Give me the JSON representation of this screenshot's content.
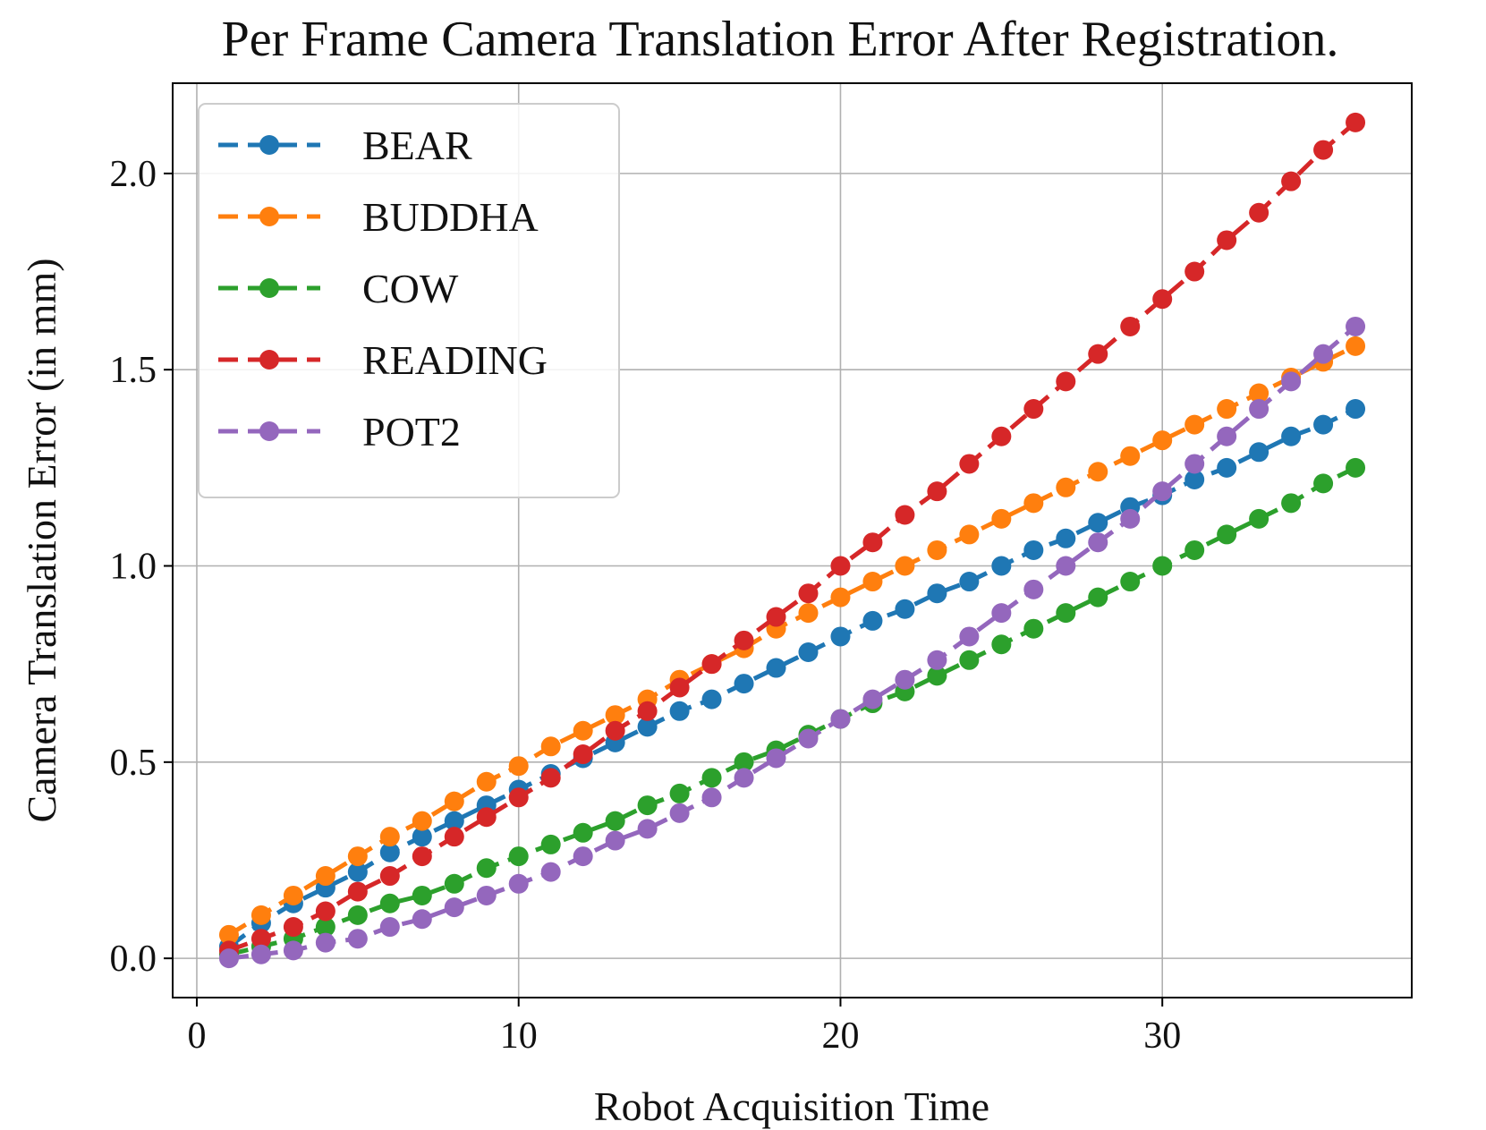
{
  "chart_data": {
    "type": "line",
    "title": "Per Frame Camera Translation Error After Registration.",
    "xlabel": "Robot Acquisition Time",
    "ylabel": "Camera Translation Error (in mm)",
    "xlim": [
      -0.75,
      37.75
    ],
    "ylim": [
      -0.1,
      2.23
    ],
    "xticks": [
      0,
      10,
      20,
      30
    ],
    "yticks": [
      0.0,
      0.5,
      1.0,
      1.5,
      2.0
    ],
    "xtick_labels": [
      "0",
      "10",
      "20",
      "30"
    ],
    "ytick_labels": [
      "0.0",
      "0.5",
      "1.0",
      "1.5",
      "2.0"
    ],
    "grid": true,
    "legend_position": "top-left",
    "x": [
      1,
      2,
      3,
      4,
      5,
      6,
      7,
      8,
      9,
      10,
      11,
      12,
      13,
      14,
      15,
      16,
      17,
      18,
      19,
      20,
      21,
      22,
      23,
      24,
      25,
      26,
      27,
      28,
      29,
      30,
      31,
      32,
      33,
      34,
      35,
      36
    ],
    "series": [
      {
        "name": "BEAR",
        "color": "#1f77b4",
        "values": [
          0.03,
          0.09,
          0.14,
          0.18,
          0.22,
          0.27,
          0.31,
          0.35,
          0.39,
          0.43,
          0.47,
          0.51,
          0.55,
          0.59,
          0.63,
          0.66,
          0.7,
          0.74,
          0.78,
          0.82,
          0.86,
          0.89,
          0.93,
          0.96,
          1.0,
          1.04,
          1.07,
          1.11,
          1.15,
          1.18,
          1.22,
          1.25,
          1.29,
          1.33,
          1.36,
          1.4
        ]
      },
      {
        "name": "BUDDHA",
        "color": "#ff7f0e",
        "values": [
          0.06,
          0.11,
          0.16,
          0.21,
          0.26,
          0.31,
          0.35,
          0.4,
          0.45,
          0.49,
          0.54,
          0.58,
          0.62,
          0.66,
          0.71,
          0.75,
          0.79,
          0.84,
          0.88,
          0.92,
          0.96,
          1.0,
          1.04,
          1.08,
          1.12,
          1.16,
          1.2,
          1.24,
          1.28,
          1.32,
          1.36,
          1.4,
          1.44,
          1.48,
          1.52,
          1.56
        ]
      },
      {
        "name": "COW",
        "color": "#2ca02c",
        "values": [
          0.01,
          0.03,
          0.05,
          0.08,
          0.11,
          0.14,
          0.16,
          0.19,
          0.23,
          0.26,
          0.29,
          0.32,
          0.35,
          0.39,
          0.42,
          0.46,
          0.5,
          0.53,
          0.57,
          0.61,
          0.65,
          0.68,
          0.72,
          0.76,
          0.8,
          0.84,
          0.88,
          0.92,
          0.96,
          1.0,
          1.04,
          1.08,
          1.12,
          1.16,
          1.21,
          1.25
        ]
      },
      {
        "name": "READING",
        "color": "#d62728",
        "values": [
          0.02,
          0.05,
          0.08,
          0.12,
          0.17,
          0.21,
          0.26,
          0.31,
          0.36,
          0.41,
          0.46,
          0.52,
          0.58,
          0.63,
          0.69,
          0.75,
          0.81,
          0.87,
          0.93,
          1.0,
          1.06,
          1.13,
          1.19,
          1.26,
          1.33,
          1.4,
          1.47,
          1.54,
          1.61,
          1.68,
          1.75,
          1.83,
          1.9,
          1.98,
          2.06,
          2.13
        ]
      },
      {
        "name": "POT2",
        "color": "#9467bd",
        "values": [
          0.0,
          0.01,
          0.02,
          0.04,
          0.05,
          0.08,
          0.1,
          0.13,
          0.16,
          0.19,
          0.22,
          0.26,
          0.3,
          0.33,
          0.37,
          0.41,
          0.46,
          0.51,
          0.56,
          0.61,
          0.66,
          0.71,
          0.76,
          0.82,
          0.88,
          0.94,
          1.0,
          1.06,
          1.12,
          1.19,
          1.26,
          1.33,
          1.4,
          1.47,
          1.54,
          1.61
        ]
      }
    ]
  }
}
